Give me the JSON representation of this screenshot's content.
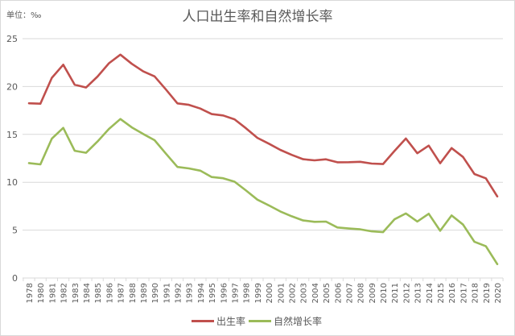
{
  "chart_data": {
    "type": "line",
    "title": "人口出生率和自然增长率",
    "unit_label": "单位：‰",
    "xlabel": "",
    "ylabel": "‰",
    "ylim": [
      0,
      25
    ],
    "yticks": [
      0,
      5,
      10,
      15,
      20,
      25
    ],
    "grid": true,
    "legend_position": "bottom",
    "x": [
      "1978",
      "1980",
      "1981",
      "1982",
      "1983",
      "1984",
      "1985",
      "1986",
      "1987",
      "1988",
      "1989",
      "1990",
      "1991",
      "1992",
      "1993",
      "1994",
      "1995",
      "1996",
      "1997",
      "1998",
      "1999",
      "2000",
      "2001",
      "2002",
      "2003",
      "2004",
      "2005",
      "2006",
      "2007",
      "2008",
      "2009",
      "2010",
      "2011",
      "2012",
      "2013",
      "2014",
      "2015",
      "2016",
      "2017",
      "2018",
      "2019",
      "2020"
    ],
    "series": [
      {
        "name": "出生率",
        "color": "#c0504d",
        "values": [
          18.25,
          18.21,
          20.91,
          22.28,
          20.19,
          19.9,
          21.04,
          22.43,
          23.33,
          22.37,
          21.58,
          21.06,
          19.68,
          18.24,
          18.09,
          17.7,
          17.12,
          16.98,
          16.57,
          15.64,
          14.64,
          14.03,
          13.38,
          12.86,
          12.41,
          12.29,
          12.4,
          12.09,
          12.1,
          12.14,
          11.95,
          11.9,
          13.27,
          14.57,
          13.03,
          13.83,
          11.99,
          13.57,
          12.64,
          10.86,
          10.41,
          8.52
        ]
      },
      {
        "name": "自然增长率",
        "color": "#9bbb59",
        "values": [
          12.0,
          11.87,
          14.55,
          15.68,
          13.29,
          13.08,
          14.26,
          15.57,
          16.61,
          15.73,
          15.04,
          14.39,
          12.98,
          11.6,
          11.45,
          11.21,
          10.55,
          10.42,
          10.06,
          9.14,
          8.18,
          7.58,
          6.95,
          6.45,
          6.01,
          5.87,
          5.89,
          5.28,
          5.17,
          5.08,
          4.87,
          4.79,
          6.13,
          6.74,
          5.9,
          6.71,
          4.93,
          6.53,
          5.58,
          3.78,
          3.32,
          1.45
        ]
      }
    ]
  }
}
